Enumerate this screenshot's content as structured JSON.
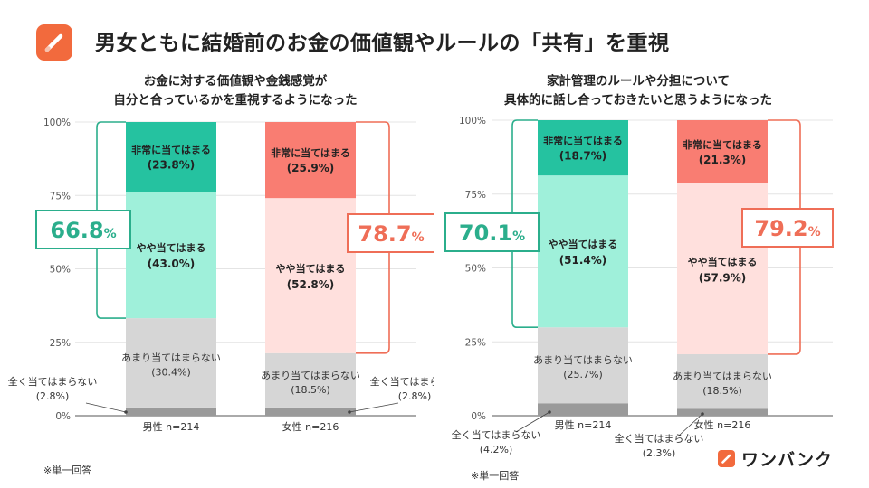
{
  "header": {
    "title": "男女ともに結婚前のお金の価値観やルールの「共有」を重視",
    "logo_icon": "pencil-icon"
  },
  "colors": {
    "teal_strong": "#25c2a0",
    "teal_light": "#9ff0da",
    "teal_bracket": "#2bae8c",
    "salmon_strong": "#f97d72",
    "salmon_light": "#ffe0dd",
    "salmon_bracket": "#ef6e57",
    "gray_light": "#d6d6d6",
    "gray_dark": "#9a9a9a",
    "accent": "#f26a3d"
  },
  "footer": {
    "note_left": "※単一回答",
    "note_right": "※単一回答",
    "brand_name": "ワンバンク",
    "brand_icon": "pencil-icon"
  },
  "chart_data": [
    {
      "type": "bar",
      "stacked": true,
      "subtitle_line1": "お金に対する価値観や金銭感覚が",
      "subtitle_line2": "自分と合っているかを重視するようになった",
      "y_ticks": [
        "0%",
        "25%",
        "50%",
        "75%",
        "100%"
      ],
      "ylim": [
        0,
        100
      ],
      "categories": [
        "男性 n=214",
        "女性 n=216"
      ],
      "series": [
        {
          "name": "全く当てはまらない",
          "values": [
            2.8,
            2.8
          ],
          "labels": [
            "(2.8%)",
            "(2.8%)"
          ]
        },
        {
          "name": "あまり当てはまらない",
          "values": [
            30.4,
            18.5
          ],
          "labels": [
            "(30.4%)",
            "(18.5%)"
          ]
        },
        {
          "name": "やや当てはまる",
          "values": [
            43.0,
            52.8
          ],
          "labels": [
            "(43.0%)",
            "(52.8%)"
          ]
        },
        {
          "name": "非常に当てはまる",
          "values": [
            23.8,
            25.9
          ],
          "labels": [
            "(23.8%)",
            "(25.9%)"
          ]
        }
      ],
      "totals": [
        {
          "value": "66.8",
          "unit": "%"
        },
        {
          "value": "78.7",
          "unit": "%"
        }
      ]
    },
    {
      "type": "bar",
      "stacked": true,
      "subtitle_line1": "家計管理のルールや分担について",
      "subtitle_line2": "具体的に話し合っておきたいと思うようになった",
      "y_ticks": [
        "0%",
        "25%",
        "50%",
        "75%",
        "100%"
      ],
      "ylim": [
        0,
        100
      ],
      "categories": [
        "男性 n=214",
        "女性 n=216"
      ],
      "series": [
        {
          "name": "全く当てはまらない",
          "values": [
            4.2,
            2.3
          ],
          "labels": [
            "(4.2%)",
            "(2.3%)"
          ]
        },
        {
          "name": "あまり当てはまらない",
          "values": [
            25.7,
            18.5
          ],
          "labels": [
            "(25.7%)",
            "(18.5%)"
          ]
        },
        {
          "name": "やや当てはまる",
          "values": [
            51.4,
            57.9
          ],
          "labels": [
            "(51.4%)",
            "(57.9%)"
          ]
        },
        {
          "name": "非常に当てはまる",
          "values": [
            18.7,
            21.3
          ],
          "labels": [
            "(18.7%)",
            "(21.3%)"
          ]
        }
      ],
      "totals": [
        {
          "value": "70.1",
          "unit": "%"
        },
        {
          "value": "79.2",
          "unit": "%"
        }
      ]
    }
  ]
}
